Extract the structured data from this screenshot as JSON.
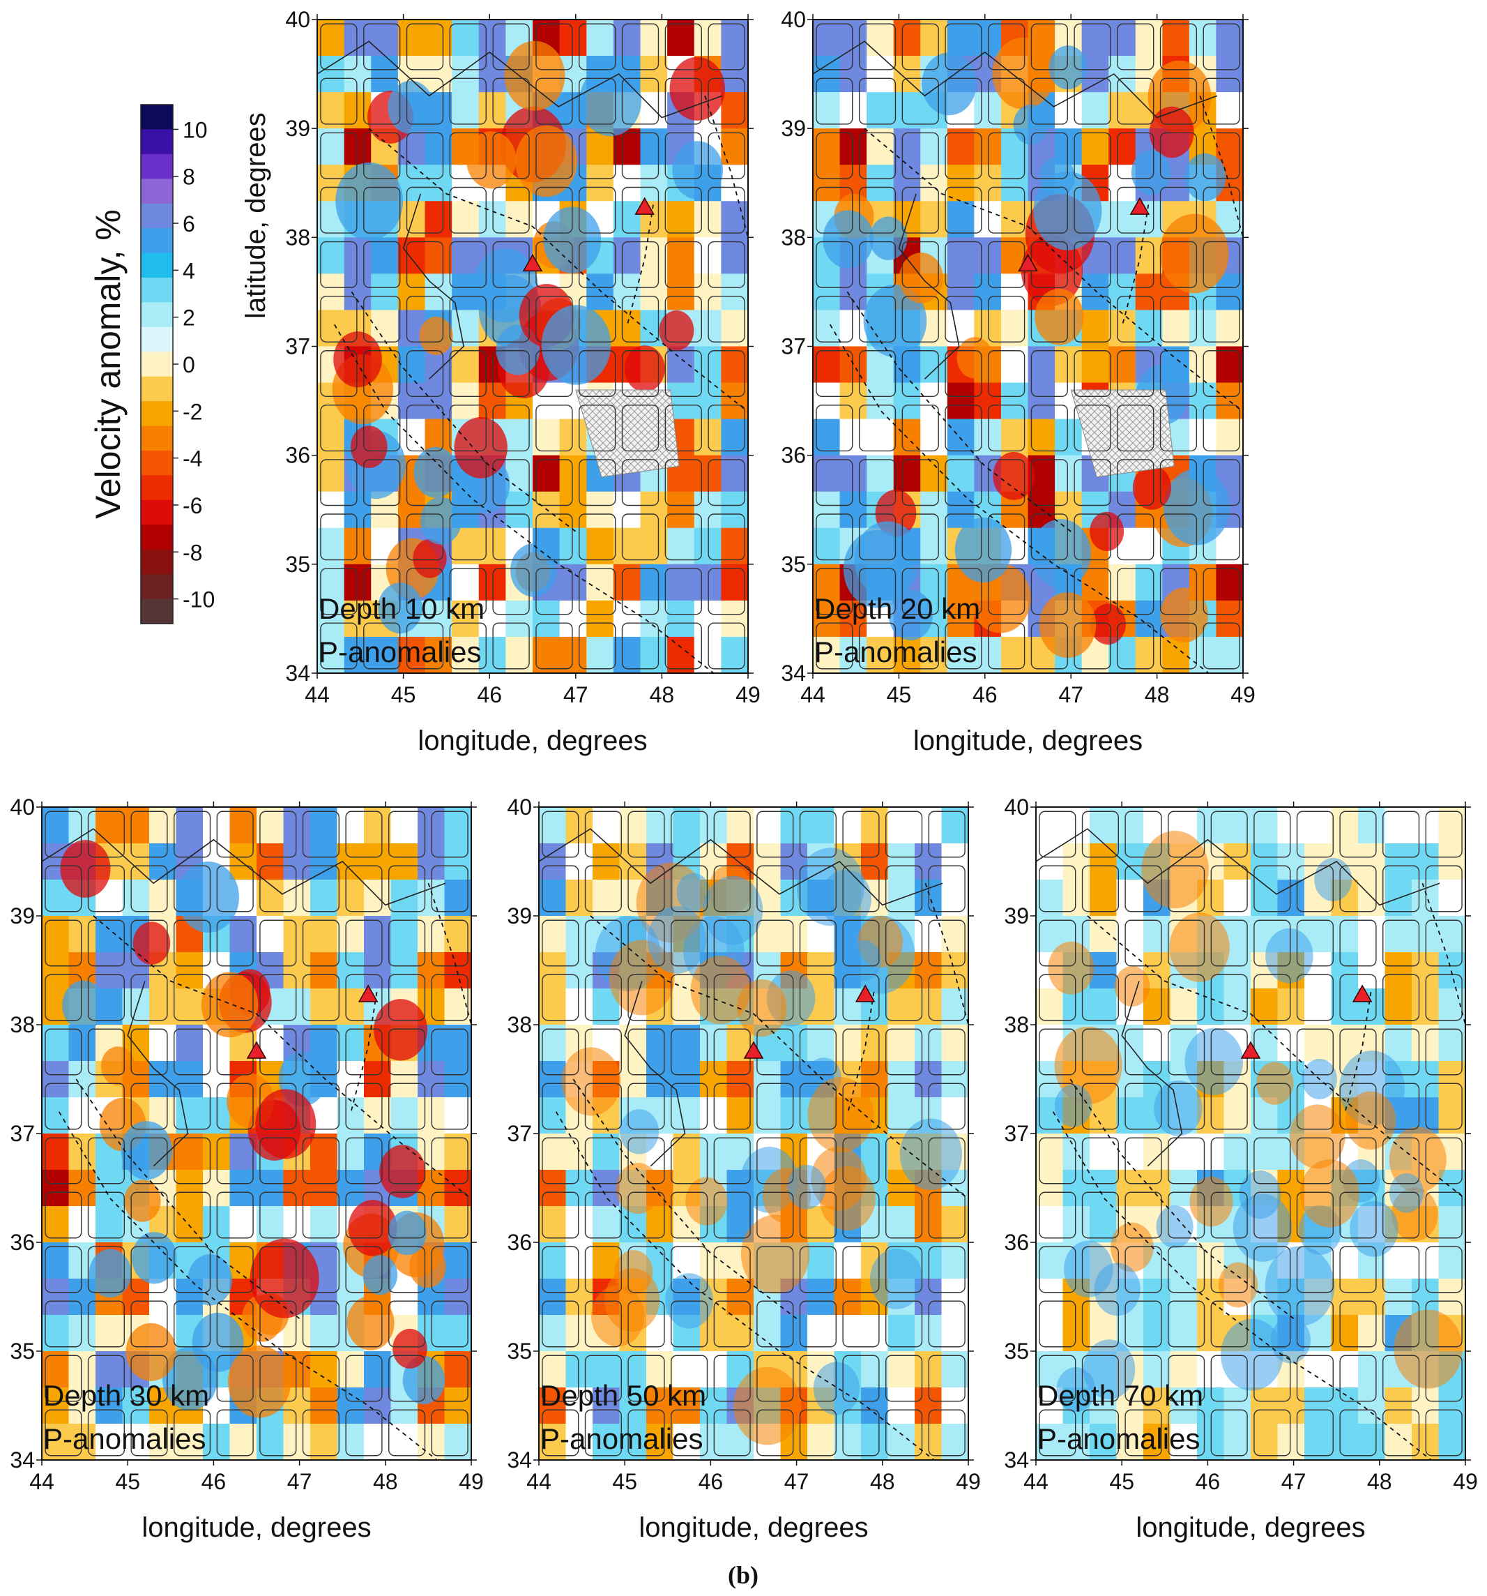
{
  "figure": {
    "panel_letter": "(b)"
  },
  "colorbar": {
    "label": "Velocity anomaly, %",
    "ticks": [
      "10",
      "8",
      "6",
      "4",
      "2",
      "0",
      "-2",
      "-4",
      "-6",
      "-8",
      "-10"
    ],
    "colors": [
      "#0b0b5a",
      "#3a10a8",
      "#6a2fc8",
      "#8d66d6",
      "#6f88e0",
      "#3ea0ea",
      "#1fbcec",
      "#6fd8f2",
      "#a9ecf8",
      "#dcf7fb",
      "#fff3c4",
      "#fccb4d",
      "#f9a500",
      "#f88000",
      "#f45500",
      "#ee2a00",
      "#df0a0a",
      "#b00000",
      "#8a1010",
      "#6a2222",
      "#553535"
    ]
  },
  "chart_data": [
    {
      "type": "heatmap",
      "overlay_title": "Depth 10 km",
      "overlay_subtitle": "P-anomalies",
      "xlabel": "longitude, degrees",
      "ylabel": "latitude, degrees",
      "xlim": [
        44,
        49
      ],
      "ylim": [
        34,
        40
      ],
      "xticks": [
        44,
        45,
        46,
        47,
        48,
        49
      ],
      "yticks": [
        34,
        35,
        36,
        37,
        38,
        39,
        40
      ],
      "volcanoes": [
        [
          46.5,
          37.75
        ],
        [
          47.8,
          38.27
        ]
      ]
    },
    {
      "type": "heatmap",
      "overlay_title": "Depth 20 km",
      "overlay_subtitle": "P-anomalies",
      "xlabel": "longitude, degrees",
      "ylabel": "",
      "xlim": [
        44,
        49
      ],
      "ylim": [
        34,
        40
      ],
      "xticks": [
        44,
        45,
        46,
        47,
        48,
        49
      ],
      "yticks": [
        34,
        35,
        36,
        37,
        38,
        39,
        40
      ],
      "volcanoes": [
        [
          46.5,
          37.75
        ],
        [
          47.8,
          38.27
        ]
      ]
    },
    {
      "type": "heatmap",
      "overlay_title": "Depth 30 km",
      "overlay_subtitle": "P-anomalies",
      "xlabel": "longitude, degrees",
      "ylabel": "",
      "xlim": [
        44,
        49
      ],
      "ylim": [
        34,
        40
      ],
      "xticks": [
        44,
        45,
        46,
        47,
        48,
        49
      ],
      "yticks": [
        34,
        35,
        36,
        37,
        38,
        39,
        40
      ],
      "volcanoes": [
        [
          46.5,
          37.75
        ],
        [
          47.8,
          38.27
        ]
      ]
    },
    {
      "type": "heatmap",
      "overlay_title": "Depth 50 km",
      "overlay_subtitle": "P-anomalies",
      "xlabel": "longitude, degrees",
      "ylabel": "",
      "xlim": [
        44,
        49
      ],
      "ylim": [
        34,
        40
      ],
      "xticks": [
        44,
        45,
        46,
        47,
        48,
        49
      ],
      "yticks": [
        34,
        35,
        36,
        37,
        38,
        39,
        40
      ],
      "volcanoes": [
        [
          46.5,
          37.75
        ],
        [
          47.8,
          38.27
        ]
      ]
    },
    {
      "type": "heatmap",
      "overlay_title": "Depth 70 km",
      "overlay_subtitle": "P-anomalies",
      "xlabel": "longitude, degrees",
      "ylabel": "",
      "xlim": [
        44,
        49
      ],
      "ylim": [
        34,
        40
      ],
      "xticks": [
        44,
        45,
        46,
        47,
        48,
        49
      ],
      "yticks": [
        34,
        35,
        36,
        37,
        38,
        39,
        40
      ],
      "volcanoes": [
        [
          46.5,
          37.75
        ],
        [
          47.8,
          38.27
        ]
      ]
    }
  ]
}
